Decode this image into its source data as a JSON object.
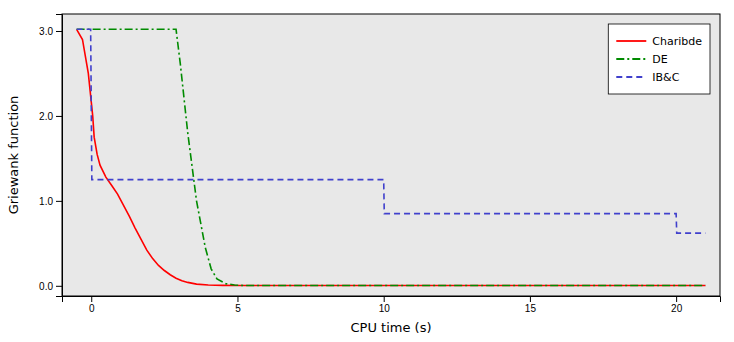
{
  "chart_data": {
    "type": "line",
    "xlabel": "CPU time (s)",
    "ylabel": "Griewank function",
    "xlim": [
      -1.0,
      21.5
    ],
    "ylim": [
      -0.12,
      3.2
    ],
    "xticks": [
      0,
      5,
      10,
      15,
      20
    ],
    "yticks": [
      {
        "value": 0.0,
        "label": "0.0"
      },
      {
        "value": 1.0,
        "label": "1.0"
      },
      {
        "value": 2.0,
        "label": "2.0"
      },
      {
        "value": 3.0,
        "label": "3.0"
      }
    ],
    "grid": false,
    "legend": "upper right",
    "series": [
      {
        "name": "Charibde",
        "color": "#FF0000",
        "line_style": "solid",
        "x": [
          -0.5,
          -0.3,
          -0.1,
          0.05,
          0.1,
          0.2,
          0.3,
          0.5,
          0.7,
          0.9,
          1.1,
          1.3,
          1.5,
          1.7,
          1.9,
          2.1,
          2.3,
          2.5,
          2.7,
          2.9,
          3.1,
          3.3,
          3.6,
          4.0,
          4.5,
          5.0,
          21.0
        ],
        "values": [
          3.02,
          2.9,
          2.5,
          2.0,
          1.75,
          1.55,
          1.42,
          1.28,
          1.18,
          1.08,
          0.95,
          0.82,
          0.68,
          0.55,
          0.42,
          0.32,
          0.24,
          0.18,
          0.13,
          0.09,
          0.06,
          0.04,
          0.02,
          0.01,
          0.005,
          0.003,
          0.003
        ]
      },
      {
        "name": "DE",
        "color": "#008B00",
        "line_style": "dashdot",
        "x": [
          -0.5,
          2.9,
          3.05,
          3.3,
          3.6,
          3.9,
          4.1,
          4.3,
          4.6,
          4.9,
          5.2,
          21.0
        ],
        "values": [
          3.02,
          3.02,
          2.6,
          1.8,
          1.0,
          0.45,
          0.2,
          0.08,
          0.025,
          0.01,
          0.003,
          0.003
        ]
      },
      {
        "name": "IB&C",
        "color": "#4040CC",
        "line_style": "dashed",
        "x": [
          -0.5,
          -0.02,
          0.02,
          10.0,
          10.02,
          20.0,
          20.02,
          21.0
        ],
        "values": [
          3.02,
          3.02,
          1.25,
          1.25,
          0.85,
          0.85,
          0.62,
          0.62
        ]
      }
    ]
  }
}
